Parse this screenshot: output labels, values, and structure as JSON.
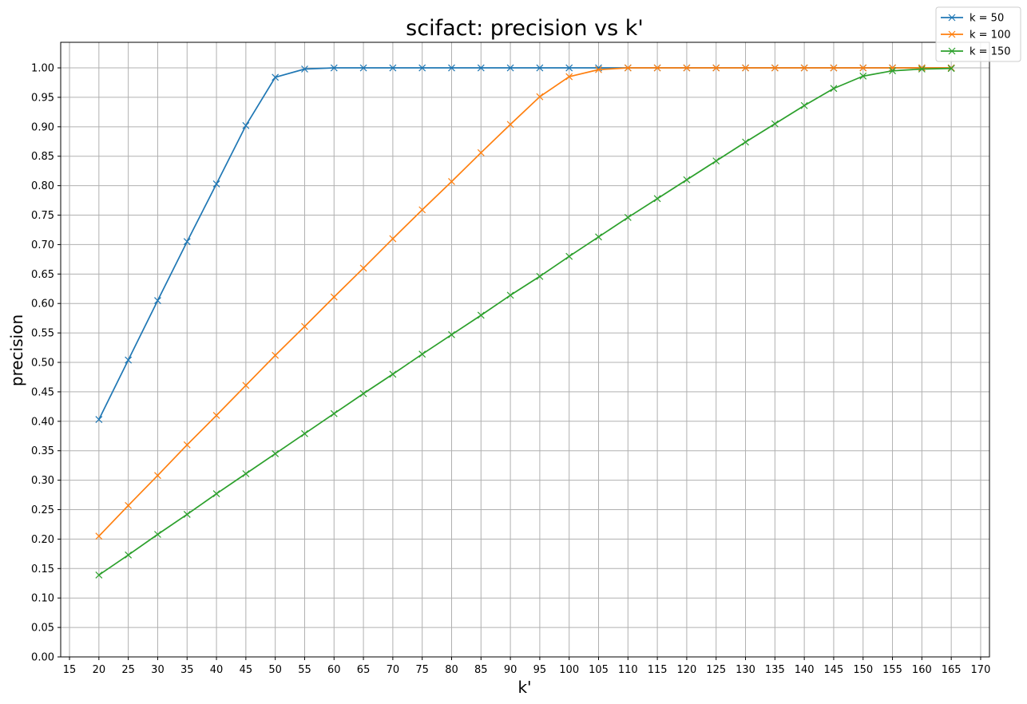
{
  "chart_data": {
    "type": "line",
    "title": "scifact: precision vs k'",
    "xlabel": "k'",
    "ylabel": "precision",
    "xlim": [
      13.5,
      171.5
    ],
    "ylim": [
      0.0,
      1.0434
    ],
    "xticks": [
      15,
      20,
      25,
      30,
      35,
      40,
      45,
      50,
      55,
      60,
      65,
      70,
      75,
      80,
      85,
      90,
      95,
      100,
      105,
      110,
      115,
      120,
      125,
      130,
      135,
      140,
      145,
      150,
      155,
      160,
      165,
      170
    ],
    "yticks": [
      0.0,
      0.05,
      0.1,
      0.15,
      0.2,
      0.25,
      0.3,
      0.35,
      0.4,
      0.45,
      0.5,
      0.55,
      0.6,
      0.65,
      0.7,
      0.75,
      0.8,
      0.85,
      0.9,
      0.95,
      1.0
    ],
    "grid": true,
    "legend_position": "top-right",
    "marker": "x",
    "x": [
      20,
      25,
      30,
      35,
      40,
      45,
      50,
      55,
      60,
      65,
      70,
      75,
      80,
      85,
      90,
      95,
      100,
      105,
      110,
      115,
      120,
      125,
      130,
      135,
      140,
      145,
      150,
      155,
      160,
      165
    ],
    "series": [
      {
        "name": "k = 50",
        "color": "#1f77b4",
        "values": [
          0.403,
          0.504,
          0.605,
          0.705,
          0.803,
          0.902,
          0.984,
          0.998,
          1.0,
          1.0,
          1.0,
          1.0,
          1.0,
          1.0,
          1.0,
          1.0,
          1.0,
          1.0,
          1.0,
          1.0,
          1.0,
          1.0,
          1.0,
          1.0,
          1.0,
          1.0,
          1.0,
          1.0,
          1.0,
          1.0
        ]
      },
      {
        "name": "k = 100",
        "color": "#ff7f0e",
        "values": [
          0.205,
          0.257,
          0.308,
          0.36,
          0.41,
          0.461,
          0.512,
          0.561,
          0.611,
          0.66,
          0.71,
          0.759,
          0.807,
          0.856,
          0.904,
          0.951,
          0.985,
          0.997,
          1.0,
          1.0,
          1.0,
          1.0,
          1.0,
          1.0,
          1.0,
          1.0,
          1.0,
          1.0,
          1.0,
          1.0
        ]
      },
      {
        "name": "k = 150",
        "color": "#2ca02c",
        "values": [
          0.139,
          0.173,
          0.208,
          0.242,
          0.277,
          0.311,
          0.345,
          0.379,
          0.413,
          0.447,
          0.48,
          0.514,
          0.547,
          0.58,
          0.614,
          0.646,
          0.68,
          0.713,
          0.746,
          0.778,
          0.81,
          0.842,
          0.874,
          0.905,
          0.936,
          0.965,
          0.986,
          0.995,
          0.998,
          0.999
        ]
      }
    ]
  }
}
